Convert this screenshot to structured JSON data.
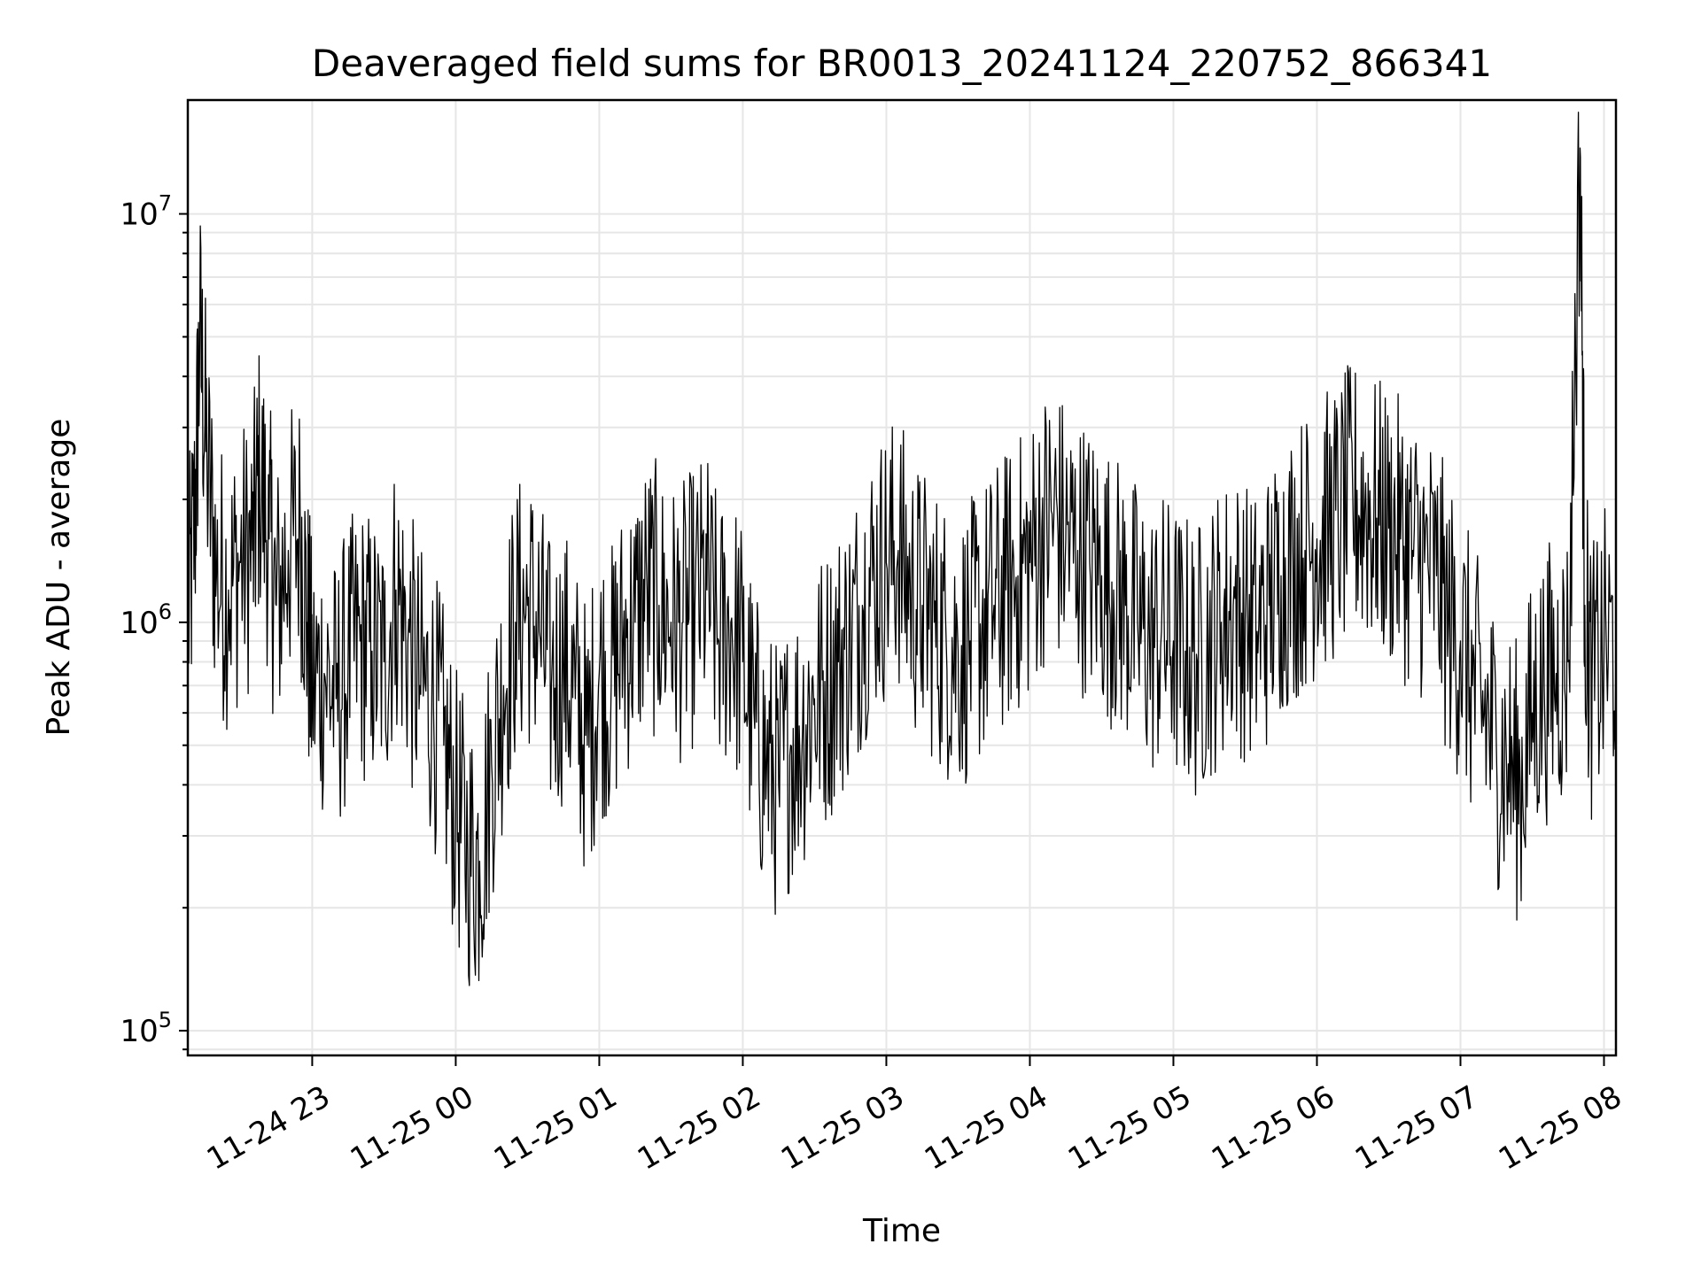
{
  "chart_data": {
    "type": "line",
    "title": "Deaveraged field sums for BR0013_20241124_220752_866341",
    "xlabel": "Time",
    "ylabel": "Peak ADU - average",
    "yscale": "log",
    "ylim": [
      87000,
      19000000
    ],
    "xlim": [
      "2024-11-24 22:08",
      "2024-11-25 08:05"
    ],
    "grid": true,
    "line_color": "#000000",
    "x_ticks": [
      "11-24 23",
      "11-25 00",
      "11-25 01",
      "11-25 02",
      "11-25 03",
      "11-25 04",
      "11-25 05",
      "11-25 06",
      "11-25 07",
      "11-25 08"
    ],
    "y_ticks": [
      {
        "base": "10",
        "exp": "5"
      },
      {
        "base": "10",
        "exp": "6"
      },
      {
        "base": "10",
        "exp": "7"
      }
    ],
    "series": [
      {
        "x": [
          "2024-11-24 22:08",
          "2024-11-24 22:11",
          "2024-11-24 22:13",
          "2024-11-24 22:16",
          "2024-11-24 22:20",
          "2024-11-24 22:25",
          "2024-11-24 22:30",
          "2024-11-24 22:35",
          "2024-11-24 22:38",
          "2024-11-24 22:42",
          "2024-11-24 22:45",
          "2024-11-24 22:50",
          "2024-11-24 22:55",
          "2024-11-24 22:58",
          "2024-11-24 23:00",
          "2024-11-24 23:05",
          "2024-11-24 23:10",
          "2024-11-24 23:15",
          "2024-11-24 23:20",
          "2024-11-24 23:25",
          "2024-11-24 23:30",
          "2024-11-24 23:35",
          "2024-11-24 23:40",
          "2024-11-24 23:45",
          "2024-11-24 23:50",
          "2024-11-24 23:55",
          "2024-11-25 00:00",
          "2024-11-25 00:05",
          "2024-11-25 00:10",
          "2024-11-25 00:15",
          "2024-11-25 00:20",
          "2024-11-25 00:25",
          "2024-11-25 00:30",
          "2024-11-25 00:35",
          "2024-11-25 00:40",
          "2024-11-25 00:45",
          "2024-11-25 00:50",
          "2024-11-25 00:55",
          "2024-11-25 01:00",
          "2024-11-25 01:05",
          "2024-11-25 01:10",
          "2024-11-25 01:15",
          "2024-11-25 01:20",
          "2024-11-25 01:25",
          "2024-11-25 01:30",
          "2024-11-25 01:35",
          "2024-11-25 01:40",
          "2024-11-25 01:45",
          "2024-11-25 01:50",
          "2024-11-25 01:55",
          "2024-11-25 02:00",
          "2024-11-25 02:05",
          "2024-11-25 02:10",
          "2024-11-25 02:15",
          "2024-11-25 02:20",
          "2024-11-25 02:25",
          "2024-11-25 02:30",
          "2024-11-25 02:35",
          "2024-11-25 02:40",
          "2024-11-25 02:45",
          "2024-11-25 02:50",
          "2024-11-25 02:55",
          "2024-11-25 03:00",
          "2024-11-25 03:05",
          "2024-11-25 03:10",
          "2024-11-25 03:15",
          "2024-11-25 03:20",
          "2024-11-25 03:25",
          "2024-11-25 03:30",
          "2024-11-25 03:35",
          "2024-11-25 03:40",
          "2024-11-25 03:45",
          "2024-11-25 03:50",
          "2024-11-25 03:55",
          "2024-11-25 04:00",
          "2024-11-25 04:05",
          "2024-11-25 04:10",
          "2024-11-25 04:15",
          "2024-11-25 04:20",
          "2024-11-25 04:25",
          "2024-11-25 04:30",
          "2024-11-25 04:35",
          "2024-11-25 04:40",
          "2024-11-25 04:45",
          "2024-11-25 04:50",
          "2024-11-25 04:55",
          "2024-11-25 05:00",
          "2024-11-25 05:05",
          "2024-11-25 05:10",
          "2024-11-25 05:15",
          "2024-11-25 05:20",
          "2024-11-25 05:25",
          "2024-11-25 05:30",
          "2024-11-25 05:35",
          "2024-11-25 05:40",
          "2024-11-25 05:45",
          "2024-11-25 05:50",
          "2024-11-25 05:55",
          "2024-11-25 06:00",
          "2024-11-25 06:05",
          "2024-11-25 06:10",
          "2024-11-25 06:15",
          "2024-11-25 06:20",
          "2024-11-25 06:25",
          "2024-11-25 06:30",
          "2024-11-25 06:35",
          "2024-11-25 06:40",
          "2024-11-25 06:45",
          "2024-11-25 06:50",
          "2024-11-25 06:55",
          "2024-11-25 07:00",
          "2024-11-25 07:05",
          "2024-11-25 07:10",
          "2024-11-25 07:15",
          "2024-11-25 07:20",
          "2024-11-25 07:25",
          "2024-11-25 07:30",
          "2024-11-25 07:35",
          "2024-11-25 07:40",
          "2024-11-25 07:45",
          "2024-11-25 07:50",
          "2024-11-25 07:52",
          "2024-11-25 07:55",
          "2024-11-25 08:00",
          "2024-11-25 08:05"
        ],
        "values": [
          1000000,
          1800000,
          5000000,
          2500000,
          1300000,
          1200000,
          1400000,
          1500000,
          2300000,
          1600000,
          1100000,
          1500000,
          1700000,
          1000000,
          700000,
          750000,
          650000,
          800000,
          900000,
          850000,
          800000,
          1200000,
          900000,
          700000,
          650000,
          500000,
          350000,
          280000,
          260000,
          450000,
          700000,
          1000000,
          1100000,
          950000,
          700000,
          800000,
          650000,
          500000,
          750000,
          700000,
          900000,
          1000000,
          1200000,
          1100000,
          1000000,
          1000000,
          1100000,
          1200000,
          900000,
          1000000,
          800000,
          550000,
          450000,
          400000,
          500000,
          550000,
          650000,
          700000,
          800000,
          900000,
          1100000,
          1300000,
          1400000,
          1500000,
          1200000,
          1100000,
          1000000,
          900000,
          850000,
          900000,
          1000000,
          1100000,
          1200000,
          1300000,
          1400000,
          1700000,
          1800000,
          1600000,
          1500000,
          1400000,
          1300000,
          1200000,
          1100000,
          1000000,
          900000,
          950000,
          900000,
          850000,
          800000,
          900000,
          1000000,
          1100000,
          1000000,
          950000,
          1100000,
          1300000,
          1400000,
          1500000,
          1600000,
          1700000,
          1800000,
          2000000,
          1900000,
          1800000,
          1700000,
          1600000,
          1500000,
          1400000,
          1300000,
          1000000,
          900000,
          700000,
          600000,
          500000,
          450000,
          400000,
          600000,
          700000,
          750000,
          800000,
          14500000,
          1100000,
          700000,
          850000,
          900000
        ]
      }
    ]
  }
}
